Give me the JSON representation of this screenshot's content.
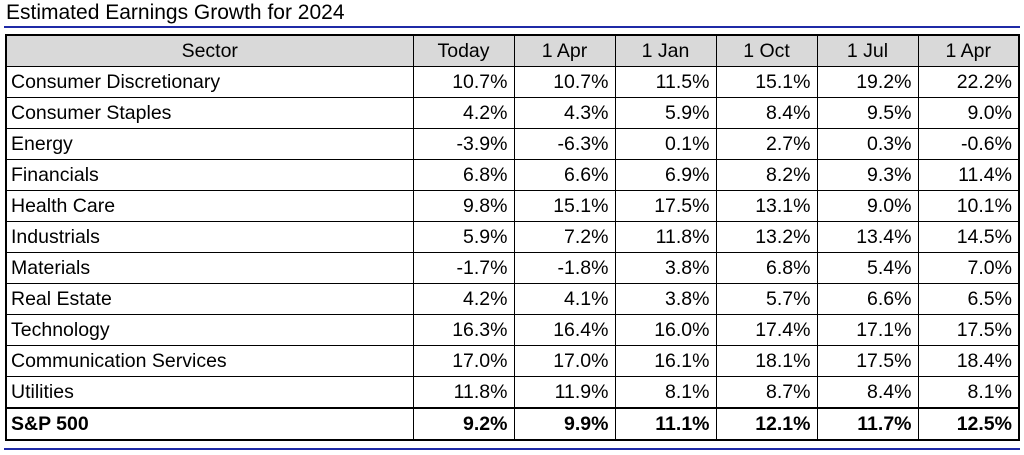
{
  "title": "Estimated Earnings Growth for 2024",
  "chart_data": {
    "type": "table",
    "title": "Estimated Earnings Growth for 2024",
    "columns": [
      "Sector",
      "Today",
      "1 Apr",
      "1 Jan",
      "1 Oct",
      "1 Jul",
      "1 Apr"
    ],
    "rows": [
      {
        "sector": "Consumer Discretionary",
        "values": [
          "10.7%",
          "10.7%",
          "11.5%",
          "15.1%",
          "19.2%",
          "22.2%"
        ]
      },
      {
        "sector": "Consumer Staples",
        "values": [
          "4.2%",
          "4.3%",
          "5.9%",
          "8.4%",
          "9.5%",
          "9.0%"
        ]
      },
      {
        "sector": "Energy",
        "values": [
          "-3.9%",
          "-6.3%",
          "0.1%",
          "2.7%",
          "0.3%",
          "-0.6%"
        ]
      },
      {
        "sector": "Financials",
        "values": [
          "6.8%",
          "6.6%",
          "6.9%",
          "8.2%",
          "9.3%",
          "11.4%"
        ]
      },
      {
        "sector": "Health Care",
        "values": [
          "9.8%",
          "15.1%",
          "17.5%",
          "13.1%",
          "9.0%",
          "10.1%"
        ]
      },
      {
        "sector": "Industrials",
        "values": [
          "5.9%",
          "7.2%",
          "11.8%",
          "13.2%",
          "13.4%",
          "14.5%"
        ]
      },
      {
        "sector": "Materials",
        "values": [
          "-1.7%",
          "-1.8%",
          "3.8%",
          "6.8%",
          "5.4%",
          "7.0%"
        ]
      },
      {
        "sector": "Real Estate",
        "values": [
          "4.2%",
          "4.1%",
          "3.8%",
          "5.7%",
          "6.6%",
          "6.5%"
        ]
      },
      {
        "sector": "Technology",
        "values": [
          "16.3%",
          "16.4%",
          "16.0%",
          "17.4%",
          "17.1%",
          "17.5%"
        ]
      },
      {
        "sector": "Communication Services",
        "values": [
          "17.0%",
          "17.0%",
          "16.1%",
          "18.1%",
          "17.5%",
          "18.4%"
        ]
      },
      {
        "sector": "Utilities",
        "values": [
          "11.8%",
          "11.9%",
          "8.1%",
          "8.7%",
          "8.4%",
          "8.1%"
        ]
      }
    ],
    "total": {
      "sector": "S&P 500",
      "values": [
        "9.2%",
        "9.9%",
        "11.1%",
        "12.1%",
        "11.7%",
        "12.5%"
      ]
    }
  },
  "colors": {
    "rule": "#1f2aa6",
    "header_bg": "#d9d9d9"
  }
}
